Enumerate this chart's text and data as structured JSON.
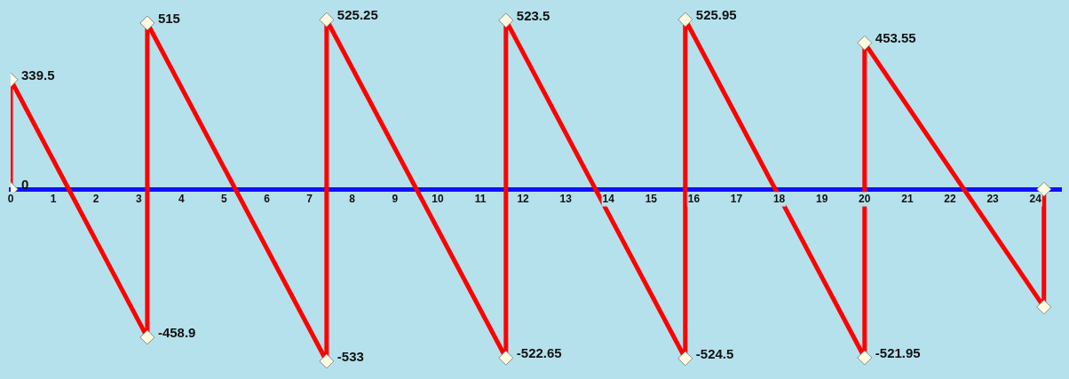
{
  "chart_data": {
    "type": "line",
    "x": [
      0,
      0,
      3.2,
      3.2,
      7.4,
      7.4,
      11.6,
      11.6,
      15.8,
      15.8,
      20,
      20,
      24.2,
      24.2
    ],
    "series": [
      {
        "color": "#ff0000",
        "values": [
          0,
          339.5,
          -458.9,
          515,
          -533,
          525.25,
          -522.65,
          523.5,
          -524.5,
          525.95,
          -521.95,
          453.55,
          -365,
          0
        ],
        "value_labels": [
          "0",
          "339.5",
          "-458.9",
          "515",
          "-533",
          "525.25",
          "-522.65",
          "523.5",
          "-524.5",
          "525.95",
          "-521.95",
          "453.55",
          null,
          null
        ]
      }
    ],
    "xlim": [
      0,
      24.6
    ],
    "xticks": [
      0,
      1,
      2,
      3,
      4,
      5,
      6,
      7,
      8,
      9,
      10,
      11,
      12,
      13,
      14,
      15,
      16,
      17,
      18,
      19,
      20,
      21,
      22,
      23,
      24
    ],
    "tick_labels": "x",
    "grid": false,
    "legend": false,
    "marker": "diamond",
    "line_style": "solid"
  }
}
